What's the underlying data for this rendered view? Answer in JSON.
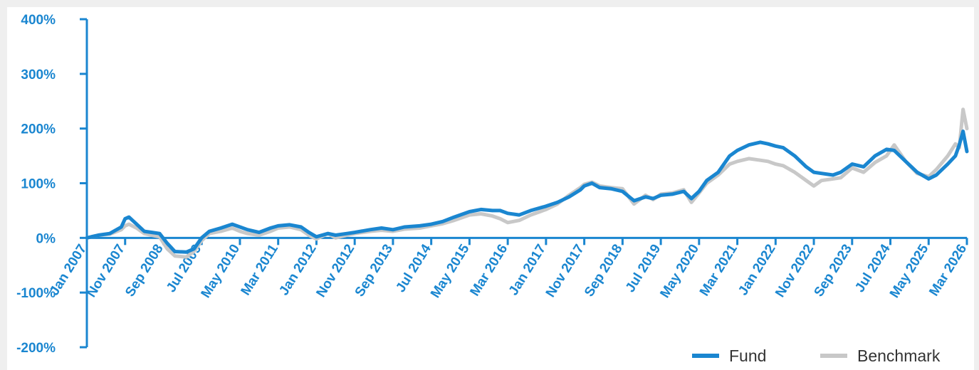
{
  "colors": {
    "axis": "#1a86d0",
    "fund": "#1a86d0",
    "benchmark": "#c8c8c8",
    "legend_text": "#333333",
    "background": "#ffffff"
  },
  "chart_data": {
    "type": "line",
    "title": "",
    "xlabel": "",
    "ylabel": "",
    "ylim": [
      -200,
      400
    ],
    "y_ticks": [
      400,
      300,
      200,
      100,
      0,
      -100,
      -200
    ],
    "y_tick_labels": [
      "400%",
      "300%",
      "200%",
      "100%",
      "0%",
      "-100%",
      "-200%"
    ],
    "x_range": [
      "2007-01",
      "2026-03"
    ],
    "x_ticks": [
      "2007-01",
      "2007-11",
      "2008-09",
      "2009-07",
      "2010-05",
      "2011-03",
      "2012-01",
      "2012-11",
      "2013-09",
      "2014-07",
      "2015-05",
      "2016-03",
      "2017-01",
      "2017-11",
      "2018-09",
      "2019-07",
      "2020-05",
      "2021-03",
      "2022-01",
      "2022-11",
      "2023-09",
      "2024-07",
      "2025-05",
      "2026-03"
    ],
    "x_tick_labels": [
      "Jan 2007",
      "Nov 2007",
      "Sep 2008",
      "Jul 2009",
      "May 2010",
      "Mar 2011",
      "Jan 2012",
      "Nov 2012",
      "Sep 2013",
      "Jul 2014",
      "May 2015",
      "Mar 2016",
      "Jan 2017",
      "Nov 2017",
      "Sep 2018",
      "Jul 2019",
      "May 2020",
      "Mar 2021",
      "Jan 2022",
      "Nov 2022",
      "Sep 2023",
      "Jul 2024",
      "May 2025",
      "Mar 2026"
    ],
    "legend_position": "bottom-right",
    "grid": false,
    "series": [
      {
        "name": "Fund",
        "color": "#1a86d0",
        "points": [
          [
            "2007-01",
            0
          ],
          [
            "2007-04",
            5
          ],
          [
            "2007-07",
            8
          ],
          [
            "2007-10",
            20
          ],
          [
            "2007-11",
            35
          ],
          [
            "2007-12",
            38
          ],
          [
            "2008-02",
            25
          ],
          [
            "2008-04",
            12
          ],
          [
            "2008-06",
            10
          ],
          [
            "2008-08",
            8
          ],
          [
            "2008-10",
            -10
          ],
          [
            "2008-12",
            -25
          ],
          [
            "2009-03",
            -26
          ],
          [
            "2009-05",
            -20
          ],
          [
            "2009-07",
            0
          ],
          [
            "2009-09",
            12
          ],
          [
            "2009-12",
            18
          ],
          [
            "2010-03",
            25
          ],
          [
            "2010-05",
            20
          ],
          [
            "2010-07",
            15
          ],
          [
            "2010-10",
            10
          ],
          [
            "2011-01",
            18
          ],
          [
            "2011-03",
            22
          ],
          [
            "2011-06",
            24
          ],
          [
            "2011-09",
            20
          ],
          [
            "2011-11",
            10
          ],
          [
            "2012-01",
            2
          ],
          [
            "2012-04",
            8
          ],
          [
            "2012-06",
            5
          ],
          [
            "2012-09",
            8
          ],
          [
            "2012-11",
            10
          ],
          [
            "2013-03",
            15
          ],
          [
            "2013-06",
            18
          ],
          [
            "2013-09",
            15
          ],
          [
            "2013-12",
            20
          ],
          [
            "2014-04",
            22
          ],
          [
            "2014-07",
            25
          ],
          [
            "2014-10",
            30
          ],
          [
            "2015-01",
            38
          ],
          [
            "2015-05",
            48
          ],
          [
            "2015-08",
            52
          ],
          [
            "2015-11",
            50
          ],
          [
            "2016-01",
            50
          ],
          [
            "2016-03",
            45
          ],
          [
            "2016-06",
            42
          ],
          [
            "2016-09",
            50
          ],
          [
            "2017-01",
            58
          ],
          [
            "2017-04",
            65
          ],
          [
            "2017-07",
            75
          ],
          [
            "2017-10",
            88
          ],
          [
            "2017-11",
            95
          ],
          [
            "2018-01",
            100
          ],
          [
            "2018-03",
            92
          ],
          [
            "2018-06",
            90
          ],
          [
            "2018-09",
            85
          ],
          [
            "2018-12",
            68
          ],
          [
            "2019-03",
            75
          ],
          [
            "2019-05",
            72
          ],
          [
            "2019-07",
            78
          ],
          [
            "2019-10",
            80
          ],
          [
            "2020-01",
            85
          ],
          [
            "2020-03",
            72
          ],
          [
            "2020-05",
            85
          ],
          [
            "2020-07",
            105
          ],
          [
            "2020-10",
            120
          ],
          [
            "2021-01",
            150
          ],
          [
            "2021-03",
            160
          ],
          [
            "2021-06",
            170
          ],
          [
            "2021-09",
            175
          ],
          [
            "2021-11",
            172
          ],
          [
            "2022-01",
            168
          ],
          [
            "2022-03",
            165
          ],
          [
            "2022-06",
            150
          ],
          [
            "2022-09",
            130
          ],
          [
            "2022-11",
            120
          ],
          [
            "2023-01",
            118
          ],
          [
            "2023-04",
            115
          ],
          [
            "2023-06",
            120
          ],
          [
            "2023-09",
            135
          ],
          [
            "2023-12",
            130
          ],
          [
            "2024-03",
            150
          ],
          [
            "2024-06",
            162
          ],
          [
            "2024-08",
            160
          ],
          [
            "2024-11",
            140
          ],
          [
            "2025-02",
            120
          ],
          [
            "2025-05",
            108
          ],
          [
            "2025-07",
            115
          ],
          [
            "2025-10",
            135
          ],
          [
            "2025-12",
            150
          ],
          [
            "2026-01",
            170
          ],
          [
            "2026-02",
            195
          ],
          [
            "2026-03",
            158
          ]
        ]
      },
      {
        "name": "Benchmark",
        "color": "#c8c8c8",
        "points": [
          [
            "2007-01",
            0
          ],
          [
            "2007-04",
            5
          ],
          [
            "2007-07",
            7
          ],
          [
            "2007-10",
            15
          ],
          [
            "2007-11",
            22
          ],
          [
            "2007-12",
            25
          ],
          [
            "2008-02",
            18
          ],
          [
            "2008-04",
            8
          ],
          [
            "2008-06",
            5
          ],
          [
            "2008-08",
            2
          ],
          [
            "2008-10",
            -20
          ],
          [
            "2008-12",
            -33
          ],
          [
            "2009-03",
            -35
          ],
          [
            "2009-05",
            -25
          ],
          [
            "2009-07",
            -5
          ],
          [
            "2009-09",
            8
          ],
          [
            "2009-12",
            12
          ],
          [
            "2010-03",
            18
          ],
          [
            "2010-05",
            12
          ],
          [
            "2010-07",
            8
          ],
          [
            "2010-10",
            5
          ],
          [
            "2011-01",
            12
          ],
          [
            "2011-03",
            18
          ],
          [
            "2011-06",
            20
          ],
          [
            "2011-09",
            15
          ],
          [
            "2011-11",
            5
          ],
          [
            "2012-01",
            -2
          ],
          [
            "2012-04",
            8
          ],
          [
            "2012-06",
            0
          ],
          [
            "2012-09",
            5
          ],
          [
            "2012-11",
            8
          ],
          [
            "2013-03",
            12
          ],
          [
            "2013-06",
            14
          ],
          [
            "2013-09",
            12
          ],
          [
            "2013-12",
            16
          ],
          [
            "2014-04",
            18
          ],
          [
            "2014-07",
            22
          ],
          [
            "2014-10",
            26
          ],
          [
            "2015-01",
            32
          ],
          [
            "2015-05",
            42
          ],
          [
            "2015-08",
            44
          ],
          [
            "2015-11",
            40
          ],
          [
            "2016-01",
            35
          ],
          [
            "2016-03",
            28
          ],
          [
            "2016-06",
            32
          ],
          [
            "2016-09",
            42
          ],
          [
            "2017-01",
            52
          ],
          [
            "2017-04",
            62
          ],
          [
            "2017-07",
            78
          ],
          [
            "2017-10",
            92
          ],
          [
            "2017-11",
            98
          ],
          [
            "2018-01",
            102
          ],
          [
            "2018-03",
            95
          ],
          [
            "2018-06",
            92
          ],
          [
            "2018-09",
            90
          ],
          [
            "2018-12",
            62
          ],
          [
            "2019-03",
            78
          ],
          [
            "2019-05",
            70
          ],
          [
            "2019-07",
            80
          ],
          [
            "2019-10",
            82
          ],
          [
            "2020-01",
            88
          ],
          [
            "2020-03",
            65
          ],
          [
            "2020-05",
            82
          ],
          [
            "2020-07",
            100
          ],
          [
            "2020-10",
            115
          ],
          [
            "2021-01",
            135
          ],
          [
            "2021-03",
            140
          ],
          [
            "2021-06",
            145
          ],
          [
            "2021-09",
            142
          ],
          [
            "2021-11",
            140
          ],
          [
            "2022-01",
            135
          ],
          [
            "2022-03",
            132
          ],
          [
            "2022-06",
            120
          ],
          [
            "2022-09",
            105
          ],
          [
            "2022-11",
            95
          ],
          [
            "2023-01",
            105
          ],
          [
            "2023-04",
            108
          ],
          [
            "2023-06",
            110
          ],
          [
            "2023-09",
            128
          ],
          [
            "2023-12",
            120
          ],
          [
            "2024-03",
            138
          ],
          [
            "2024-06",
            150
          ],
          [
            "2024-08",
            170
          ],
          [
            "2024-11",
            140
          ],
          [
            "2025-02",
            118
          ],
          [
            "2025-05",
            112
          ],
          [
            "2025-07",
            125
          ],
          [
            "2025-10",
            150
          ],
          [
            "2025-12",
            172
          ],
          [
            "2026-01",
            165
          ],
          [
            "2026-02",
            235
          ],
          [
            "2026-03",
            200
          ]
        ]
      }
    ]
  }
}
